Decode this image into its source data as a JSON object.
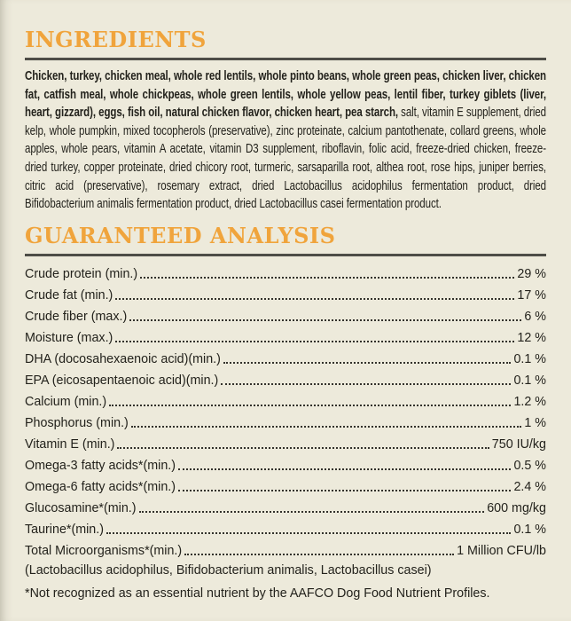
{
  "page": {
    "background_color": "#edeadb",
    "accent_color": "#f0a43c",
    "rule_color": "#4e4d47",
    "text_color": "#23221c"
  },
  "ingredients": {
    "title": "INGREDIENTS",
    "bold_part": "Chicken, turkey, chicken meal, whole red lentils, whole pinto beans, whole green peas, chicken liver, chicken fat, catfish meal, whole chickpeas, whole green lentils, whole yellow peas, lentil fiber, turkey giblets (liver, heart, gizzard), eggs, fish oil, natural chicken flavor, chicken heart, pea starch,",
    "regular_part": " salt, vitamin E supplement, dried kelp, whole pumpkin, mixed tocopherols (preservative), zinc proteinate, calcium pantothenate, collard greens, whole apples, whole pears, vitamin A acetate, vitamin D3 supplement, riboflavin, folic acid, freeze-dried chicken, freeze-dried turkey, copper proteinate, dried chicory root, turmeric, sarsaparilla root, althea root, rose hips, juniper berries, citric acid (preservative), rosemary extract, dried Lactobacillus acidophilus fermentation product, dried Bifidobacterium animalis fermentation product, dried Lactobacillus casei fermentation product."
  },
  "analysis": {
    "title": "GUARANTEED ANALYSIS",
    "rows": [
      {
        "label": "Crude protein (min.)",
        "value": "29 %"
      },
      {
        "label": "Crude fat (min.)",
        "value": "17 %"
      },
      {
        "label": "Crude fiber (max.)",
        "value": "6 %"
      },
      {
        "label": "Moisture (max.)",
        "value": "12 %"
      },
      {
        "label": "DHA (docosahexaenoic acid)(min.)",
        "value": "0.1 %"
      },
      {
        "label": "EPA (eicosapentaenoic acid)(min.)",
        "value": "0.1 %"
      },
      {
        "label": "Calcium (min.)",
        "value": "1.2 %"
      },
      {
        "label": "Phosphorus (min.)",
        "value": "1 %"
      },
      {
        "label": "Vitamin E (min.)",
        "value": "750 IU/kg"
      },
      {
        "label": "Omega-3 fatty acids*(min.)",
        "value": "0.5 %"
      },
      {
        "label": "Omega-6 fatty acids*(min.)",
        "value": "2.4 %"
      },
      {
        "label": "Glucosamine*(min.)",
        "value": "600 mg/kg"
      },
      {
        "label": "Taurine*(min.)",
        "value": "0.1 %"
      },
      {
        "label": "Total Microorganisms*(min.)",
        "value": "1 Million CFU/lb"
      }
    ],
    "microorganisms_detail": "(Lactobacillus acidophilus, Bifidobacterium animalis, Lactobacillus casei)",
    "footnote": "*Not recognized as an essential nutrient by the AAFCO Dog Food Nutrient Profiles."
  }
}
